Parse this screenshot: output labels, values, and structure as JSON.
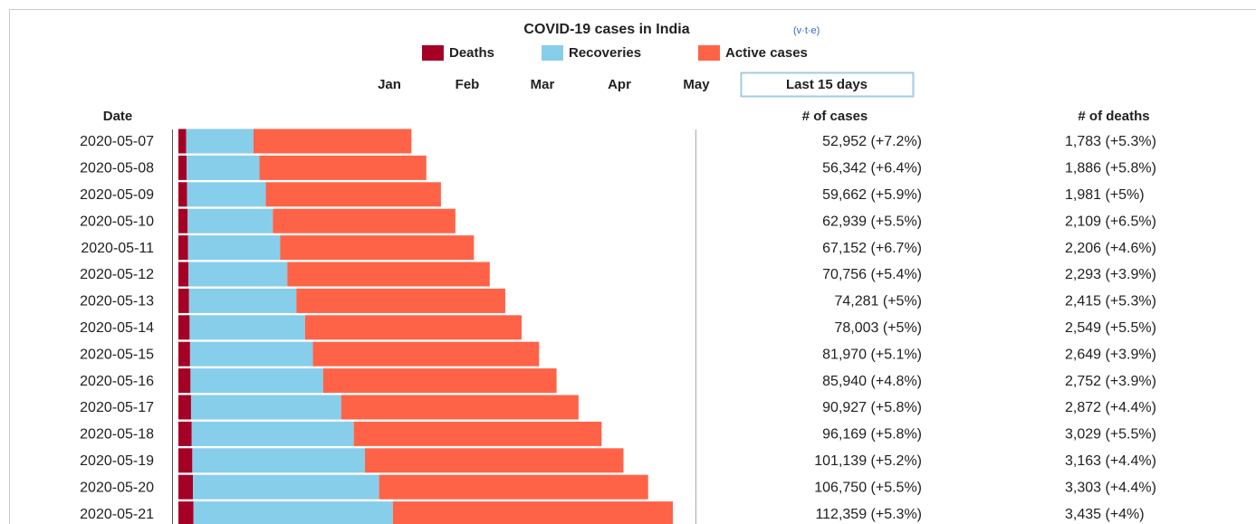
{
  "chart_data": {
    "type": "stacked-hbar",
    "title": "COVID-19 cases in India",
    "vte": "(v·t·e)",
    "nav": [
      "Jan",
      "Feb",
      "Mar",
      "Apr",
      "May",
      "Last 15 days"
    ],
    "columns": {
      "date": "Date",
      "cases": "# of cases",
      "deaths": "# of deaths"
    },
    "categories": [
      "2020-05-07",
      "2020-05-08",
      "2020-05-09",
      "2020-05-10",
      "2020-05-11",
      "2020-05-12",
      "2020-05-13",
      "2020-05-14",
      "2020-05-15",
      "2020-05-16",
      "2020-05-17",
      "2020-05-18",
      "2020-05-19",
      "2020-05-20",
      "2020-05-21"
    ],
    "series": [
      {
        "name": "Deaths",
        "color": "#a50026",
        "values": [
          1783,
          1886,
          1981,
          2109,
          2206,
          2293,
          2415,
          2549,
          2649,
          2752,
          2872,
          3029,
          3163,
          3303,
          3435
        ],
        "value_labels": [
          "1,783 (+5.3%)",
          "1,886 (+5.8%)",
          "1,981 (+5%)",
          "2,109 (+6.5%)",
          "2,206 (+4.6%)",
          "2,293 (+3.9%)",
          "2,415 (+5.3%)",
          "2,549 (+5.5%)",
          "2,649 (+3.9%)",
          "2,752 (+3.9%)",
          "2,872 (+4.4%)",
          "3,029 (+5.5%)",
          "3,163 (+4.4%)",
          "3,303 (+4.4%)",
          "3,435 (+4%)"
        ]
      },
      {
        "name": "Recoveries",
        "color": "#87ceeb",
        "values": [
          15267,
          16540,
          17887,
          19358,
          20917,
          22455,
          24386,
          26235,
          27920,
          30153,
          34109,
          36824,
          39233,
          42298,
          45300
        ]
      },
      {
        "name": "Active cases",
        "color": "#ff6347",
        "values": [
          35902,
          37916,
          39794,
          41472,
          44029,
          46008,
          47480,
          49219,
          51401,
          53035,
          53946,
          56316,
          58743,
          61149,
          63624
        ]
      }
    ],
    "cases_labels": [
      "52,952 (+7.2%)",
      "56,342 (+6.4%)",
      "59,662 (+5.9%)",
      "62,939 (+5.5%)",
      "67,152 (+6.7%)",
      "70,756 (+5.4%)",
      "74,281 (+5%)",
      "78,003 (+5%)",
      "81,970 (+5.1%)",
      "85,940 (+4.8%)",
      "90,927 (+5.8%)",
      "96,169 (+5.8%)",
      "101,139 (+5.2%)",
      "106,750 (+5.5%)",
      "112,359 (+5.3%)"
    ]
  }
}
